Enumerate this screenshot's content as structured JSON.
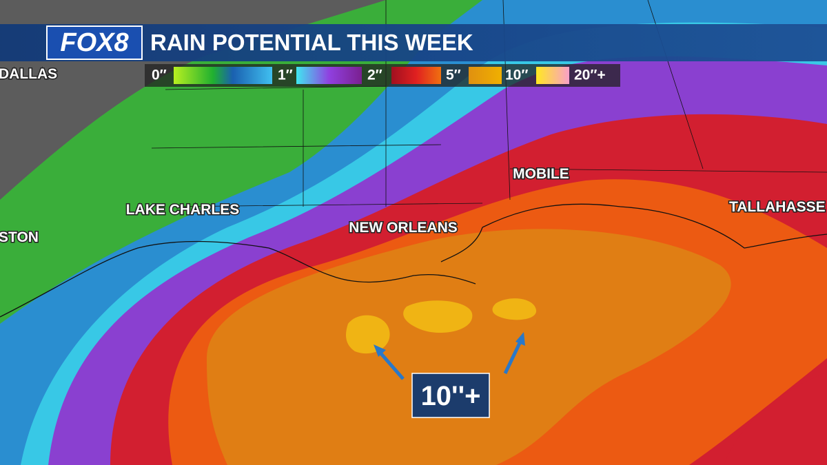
{
  "header": {
    "logo": "FOX8",
    "title": "RAIN POTENTIAL THIS WEEK"
  },
  "legend": {
    "labels": [
      "0″",
      "1″",
      "2″",
      "5″",
      "10″",
      "20″+"
    ]
  },
  "cities": [
    "DALLAS",
    "LAKE CHARLES",
    "STON",
    "NEW ORLEANS",
    "MOBILE",
    "TALLAHASSE"
  ],
  "callout": "10''+"
}
